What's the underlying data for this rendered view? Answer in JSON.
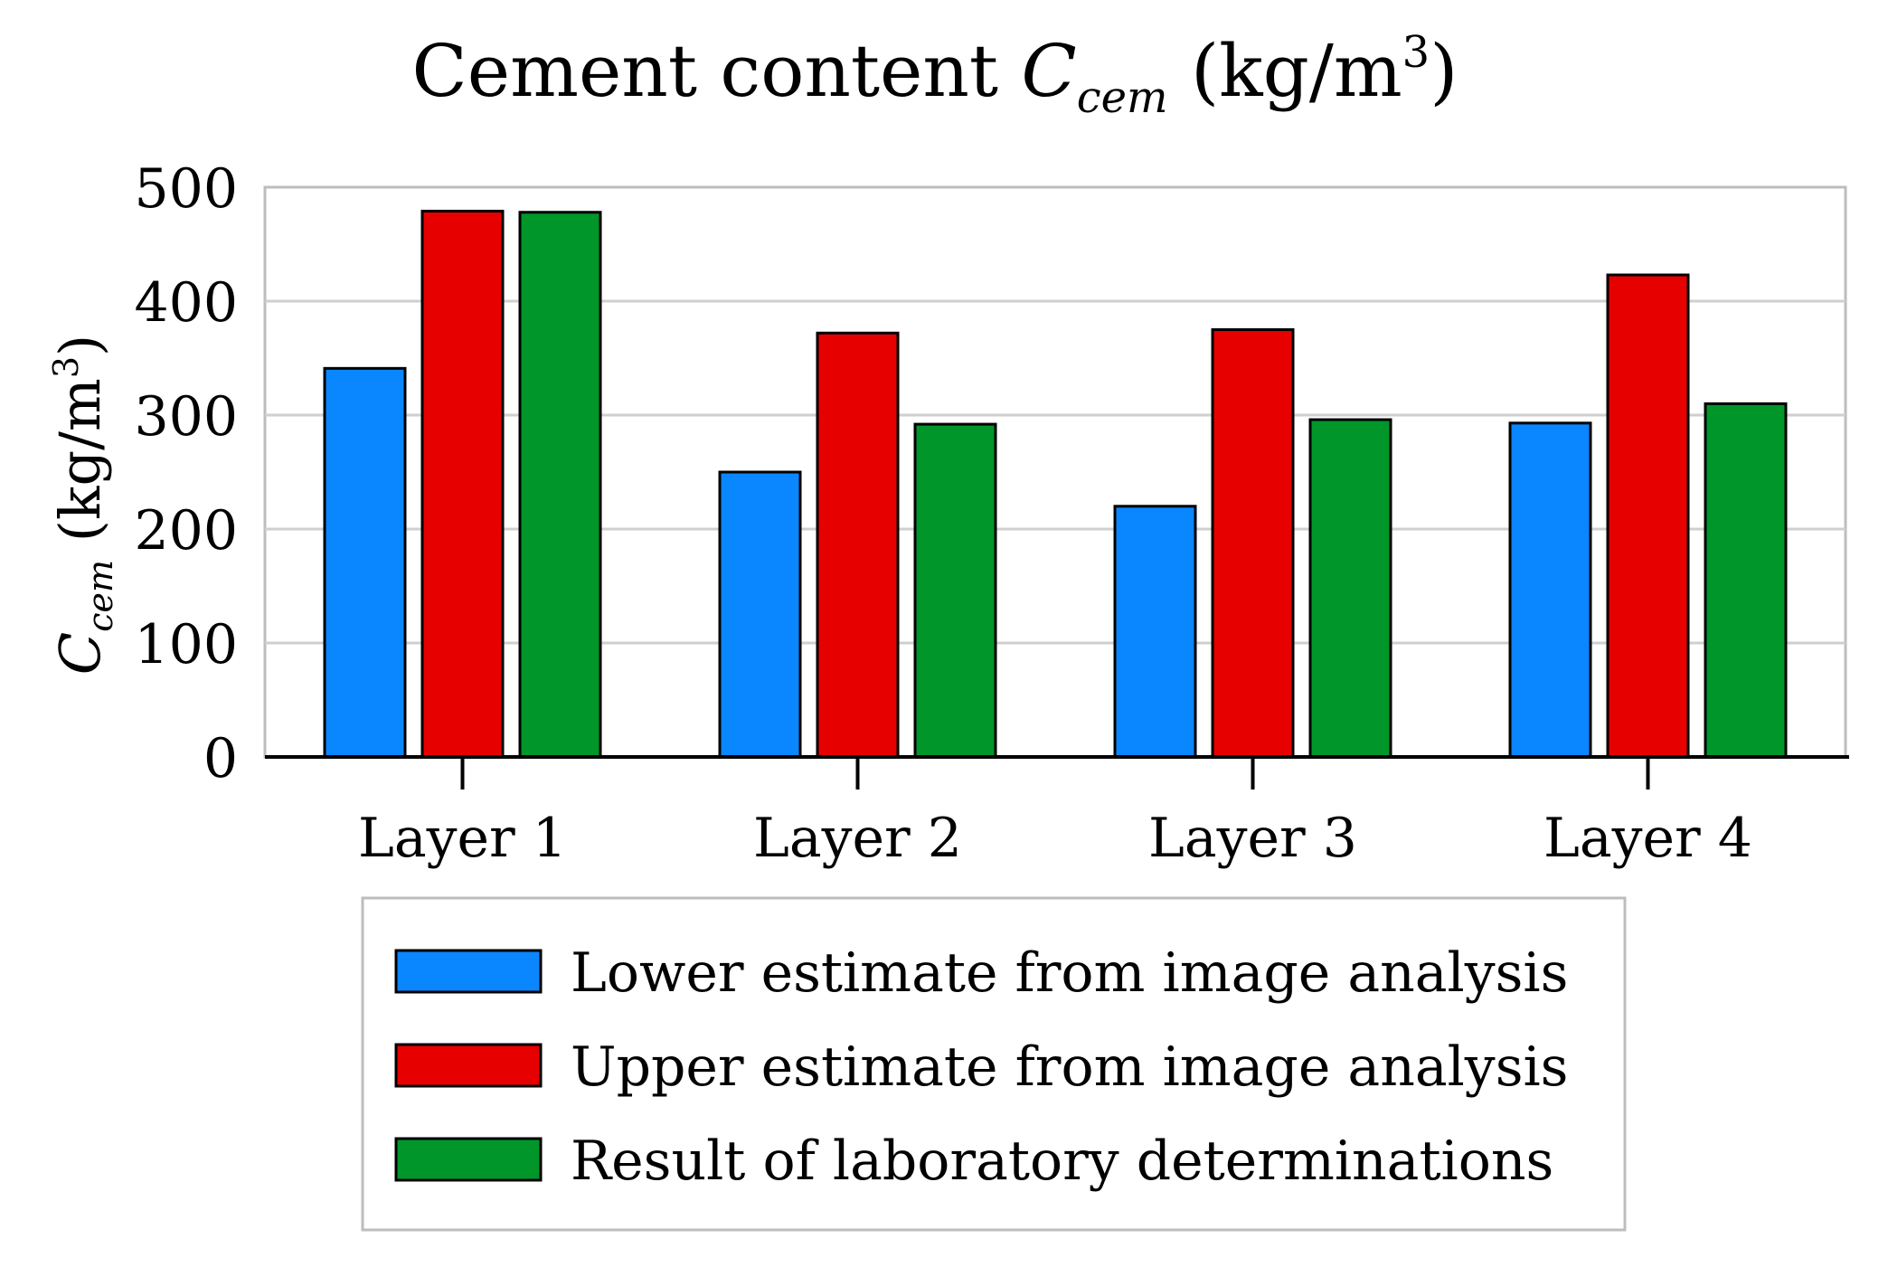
{
  "chart_data": {
    "type": "bar",
    "title": {
      "main": "Cement content ",
      "symbol": "C",
      "subscript": "cem",
      "unit_prefix": " (kg/m",
      "unit_exp": "3",
      "unit_suffix": ")"
    },
    "ylabel": {
      "symbol": "C",
      "subscript": "cem",
      "unit_prefix": " (kg/m",
      "unit_exp": "3",
      "unit_suffix": ")"
    },
    "xlabel": "",
    "ylim": [
      0,
      500
    ],
    "yticks": [
      0,
      100,
      200,
      300,
      400,
      500
    ],
    "grid": true,
    "legend_position": "bottom-center",
    "categories": [
      "Layer 1",
      "Layer 2",
      "Layer 3",
      "Layer 4"
    ],
    "series": [
      {
        "name": "Lower estimate from image analysis",
        "color": "#0a86ff",
        "values": [
          341,
          250,
          220,
          293
        ]
      },
      {
        "name": "Upper estimate from image analysis",
        "color": "#e60000",
        "values": [
          479,
          372,
          375,
          423
        ]
      },
      {
        "name": "Result of laboratory determinations",
        "color": "#00962a",
        "values": [
          478,
          292,
          296,
          310
        ]
      }
    ]
  }
}
